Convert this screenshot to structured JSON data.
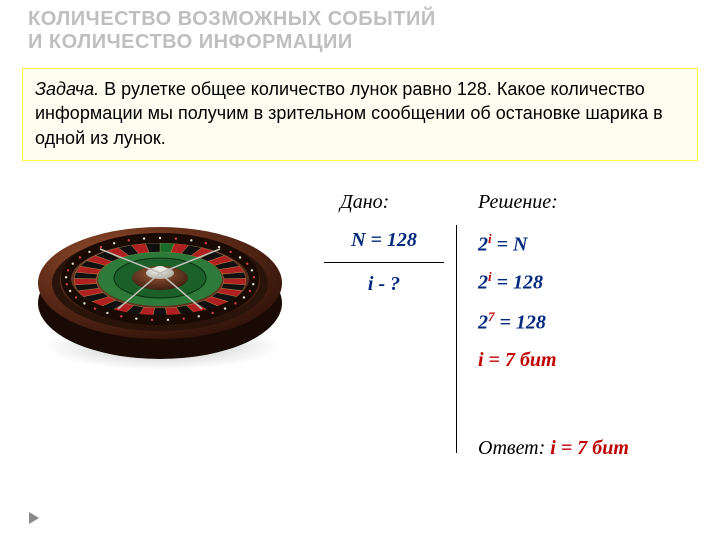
{
  "header": {
    "line1": "КОЛИЧЕСТВО ВОЗМОЖНЫХ СОБЫТИЙ",
    "line2": "И КОЛИЧЕСТВО ИНФОРМАЦИИ",
    "color": "#bfbfbf"
  },
  "task": {
    "label": "Задача.",
    "text": " В рулетке общее количество лунок равно 128. Какое  количество информации мы получим в зрительном сообщении об остановке шарика в одной из лунок.",
    "bg": "#fefef0",
    "border": "#ffff40"
  },
  "given": {
    "label": "Дано:",
    "n": "N = 128",
    "i": "i - ?"
  },
  "solution": {
    "label": "Решение:",
    "lines": [
      {
        "base": "2",
        "sup": "i",
        "rest": " = N",
        "sup_red": true
      },
      {
        "base": "2",
        "sup": "i",
        "rest": " = 128",
        "sup_red": true
      },
      {
        "base": "2",
        "sup": "7",
        "rest": " = 128",
        "sup_red": true
      },
      {
        "full": "i = 7 бит",
        "all_red": true
      }
    ]
  },
  "answer": {
    "label": "Ответ: ",
    "value": "i = 7 бит"
  },
  "roulette": {
    "rim_color": "#3b1a0f",
    "rim_highlight": "#8a4a2a",
    "cone_color": "#5a2a18",
    "green_color": "#2e7a3a",
    "center_color": "#d0d0c8",
    "slot_red": "#b02020",
    "slot_black": "#101010"
  },
  "arrow_color": "#8a8a8a"
}
